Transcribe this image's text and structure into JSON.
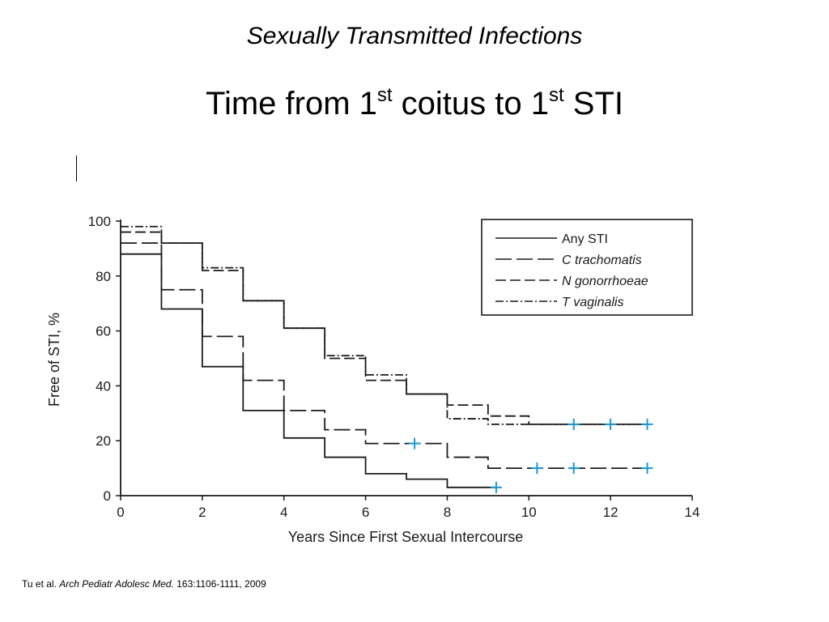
{
  "slide": {
    "subtitle": "Sexually Transmitted Infections",
    "title_parts": [
      "Time from 1",
      "st",
      " coitus to 1",
      "st",
      " STI"
    ],
    "citation": {
      "authors": "Tu et al.",
      "journal": "Arch Pediatr Adolesc Med.",
      "ref": "163:1106-1111, 2009"
    }
  },
  "colors": {
    "line": "#1a1a1a",
    "censor_marker": "#1a9ad6"
  },
  "chart_data": {
    "type": "line",
    "step": true,
    "xlabel": "Years Since First Sexual Intercourse",
    "ylabel": "Free of STI, %",
    "xlim": [
      0,
      14
    ],
    "ylim": [
      0,
      100
    ],
    "xticks": [
      0,
      2,
      4,
      6,
      8,
      10,
      12,
      14
    ],
    "yticks": [
      0,
      20,
      40,
      60,
      80,
      100
    ],
    "grid": false,
    "legend_position": "top-right",
    "series": [
      {
        "name": "Any STI",
        "dash": "solid",
        "x": [
          0,
          1,
          2,
          3,
          4,
          5,
          6,
          7,
          8,
          9.2
        ],
        "y": [
          88,
          68,
          47,
          31,
          21,
          14,
          8,
          6,
          3,
          3
        ],
        "censored": [
          [
            9.2,
            3
          ]
        ]
      },
      {
        "name": "C trachomatis",
        "dash": "long-dash",
        "x": [
          0,
          1,
          2,
          3,
          4,
          5,
          6,
          7,
          8,
          9,
          12.9
        ],
        "y": [
          92,
          75,
          58,
          42,
          31,
          24,
          19,
          19,
          14,
          10,
          10
        ],
        "censored": [
          [
            7.2,
            19
          ],
          [
            10.2,
            10
          ],
          [
            11.1,
            10
          ],
          [
            12.9,
            10
          ]
        ]
      },
      {
        "name": "N gonorrhoeae",
        "dash": "medium-dash",
        "x": [
          0,
          1,
          2,
          3,
          4,
          5,
          6,
          7,
          8,
          9,
          10,
          12.9
        ],
        "y": [
          96,
          92,
          82,
          71,
          61,
          50,
          42,
          37,
          33,
          29,
          26,
          26
        ],
        "censored": [
          [
            11.1,
            26
          ],
          [
            12,
            26
          ],
          [
            12.9,
            26
          ]
        ]
      },
      {
        "name": "T vaginalis",
        "dash": "dash-dot",
        "x": [
          0,
          1,
          2,
          3,
          4,
          5,
          6,
          7,
          8,
          9,
          10,
          12.9
        ],
        "y": [
          98,
          92,
          83,
          71,
          61,
          51,
          44,
          37,
          28,
          26,
          26,
          26
        ],
        "censored": []
      }
    ]
  }
}
